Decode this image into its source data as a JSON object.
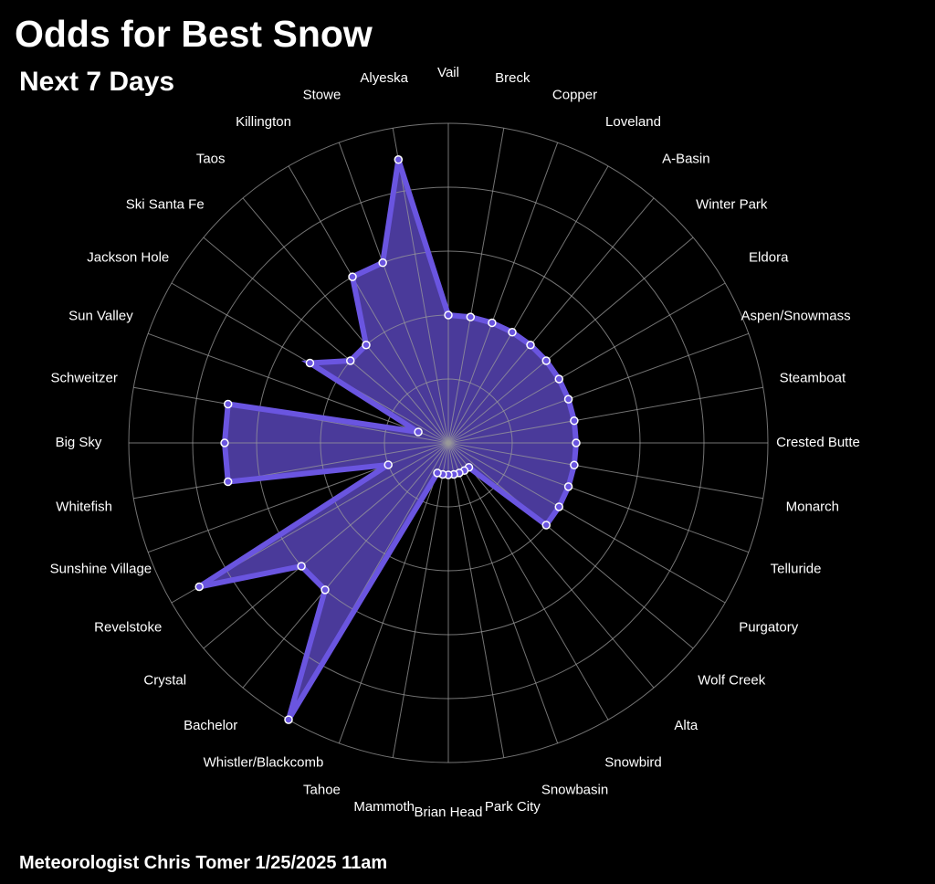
{
  "chart_data": {
    "type": "radar",
    "title": "Odds for Best Snow",
    "subtitle": "Next 7 Days",
    "footer": "Meteorologist Chris Tomer  1/25/2025 11am",
    "categories": [
      "Vail",
      "Breck",
      "Copper",
      "Loveland",
      "A-Basin",
      "Winter Park",
      "Eldora",
      "Aspen/Snowmass",
      "Steamboat",
      "Crested Butte",
      "Monarch",
      "Telluride",
      "Purgatory",
      "Wolf Creek",
      "Alta",
      "Snowbird",
      "Snowbasin",
      "Park City",
      "Brian Head",
      "Mammoth",
      "Tahoe",
      "Whistler/Blackcomb",
      "Bachelor",
      "Crystal",
      "Revelstoke",
      "Sunshine Village",
      "Whitefish",
      "Big Sky",
      "Schweitzer",
      "Sun Valley",
      "Jackson Hole",
      "Ski Santa Fe",
      "Taos",
      "Killington",
      "Stowe",
      "Alyeska"
    ],
    "values": [
      40,
      40,
      40,
      40,
      40,
      40,
      40,
      40,
      40,
      40,
      40,
      40,
      40,
      40,
      10,
      10,
      10,
      10,
      10,
      10,
      10,
      100,
      60,
      60,
      90,
      20,
      70,
      70,
      70,
      10,
      50,
      40,
      40,
      60,
      60,
      90
    ],
    "rlim": [
      0,
      100
    ],
    "ring_count": 5,
    "grid": true,
    "colors": {
      "fill": "#4a3a9a",
      "line": "#6a55e0",
      "grid": "#9a9a9a",
      "background": "#000000"
    }
  }
}
